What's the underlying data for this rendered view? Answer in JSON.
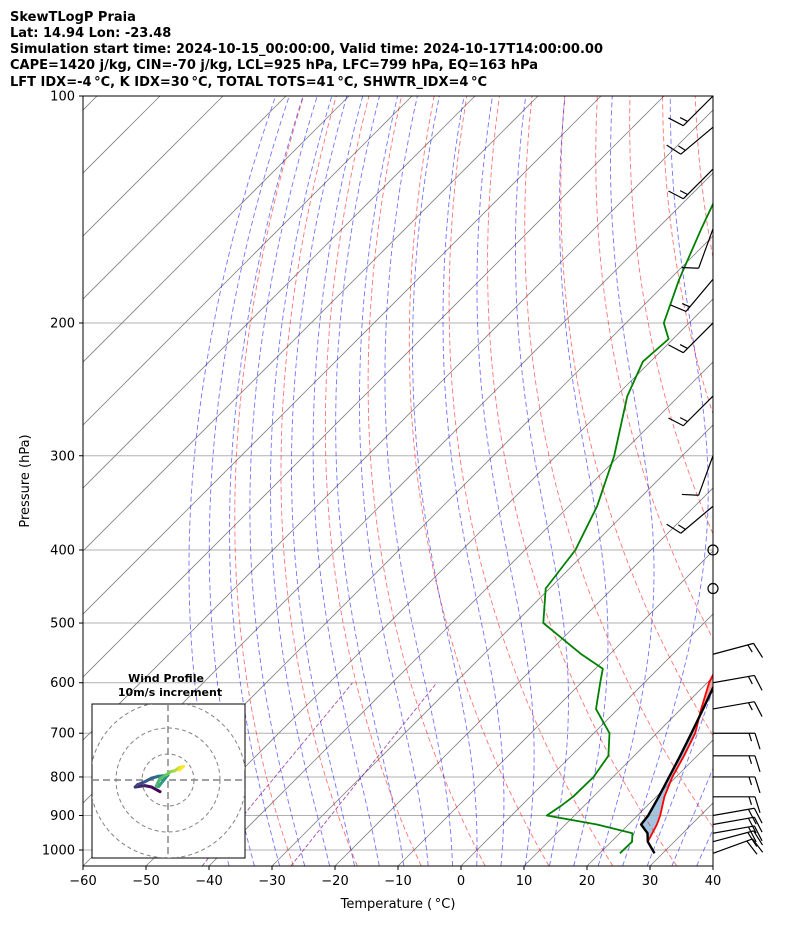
{
  "header": {
    "title": "SkewTLogP Praia",
    "location": "Lat: 14.94   Lon: -23.48",
    "times": "Simulation start time: 2024-10-15_00:00:00, Valid time: 2024-10-17T14:00:00.00",
    "indices1": "CAPE=1420 j/kg, CIN=-70 j/kg, LCL=925 hPa, LFC=799 hPa, EQ=163 hPa",
    "indices2": "LFT IDX=-4 °C, K IDX=30 °C, TOTAL TOTS=41 °C, SHWTR_IDX=4 °C"
  },
  "colors": {
    "temperature": "#ff0000",
    "dewpoint": "#008000",
    "parcel": "#000000",
    "cape_fill": "#e77c7c",
    "cin_fill": "#6a9fce",
    "dry_adiabat": "#ff0000",
    "moist_adiabat": "#0000ff",
    "mixing_ratio": "#800080",
    "isotherm": "#808080",
    "isobar": "#b0b0b0"
  },
  "chart_data": {
    "type": "line",
    "xlabel": "Temperature ( °C)",
    "ylabel": "Pressure (hPa)",
    "xlim": [
      -60,
      40
    ],
    "ylim": [
      1050,
      100
    ],
    "yscale": "log",
    "skew": true,
    "grid": true,
    "x_ticks": [
      "−60",
      "−50",
      "−40",
      "−30",
      "−20",
      "−10",
      "0",
      "10",
      "20",
      "30",
      "40"
    ],
    "y_ticks": [
      "100",
      "200",
      "300",
      "400",
      "500",
      "600",
      "700",
      "800",
      "900",
      "1000"
    ],
    "series": [
      {
        "key": "temperature",
        "points": [
          [
            1010,
            28.7
          ],
          [
            975,
            25.8
          ],
          [
            925,
            24.5
          ],
          [
            900,
            23.6
          ],
          [
            850,
            21.3
          ],
          [
            800,
            19.4
          ],
          [
            750,
            17.9
          ],
          [
            700,
            16.1
          ],
          [
            650,
            13.2
          ],
          [
            600,
            10.3
          ],
          [
            550,
            8.0
          ],
          [
            500,
            4.8
          ],
          [
            450,
            0.7
          ],
          [
            400,
            -3.8
          ],
          [
            350,
            -8.9
          ],
          [
            300,
            -14.4
          ],
          [
            250,
            -21.0
          ],
          [
            200,
            -29.5
          ],
          [
            175,
            -35.2
          ],
          [
            150,
            -41.6
          ],
          [
            125,
            -49.7
          ],
          [
            110,
            -53.6
          ],
          [
            100,
            -55.4
          ]
        ]
      },
      {
        "key": "dewpoint",
        "points": [
          [
            1010,
            23.2
          ],
          [
            975,
            23.3
          ],
          [
            950,
            22.0
          ],
          [
            925,
            15.0
          ],
          [
            900,
            5.6
          ],
          [
            875,
            6.3
          ],
          [
            850,
            6.8
          ],
          [
            800,
            6.9
          ],
          [
            750,
            5.9
          ],
          [
            700,
            2.5
          ],
          [
            650,
            -3.5
          ],
          [
            600,
            -7.0
          ],
          [
            575,
            -8.8
          ],
          [
            550,
            -14.5
          ],
          [
            500,
            -25.5
          ],
          [
            450,
            -30.6
          ],
          [
            400,
            -32.0
          ],
          [
            350,
            -35.5
          ],
          [
            300,
            -40.8
          ],
          [
            250,
            -48.2
          ],
          [
            225,
            -51.2
          ],
          [
            210,
            -50.7
          ],
          [
            200,
            -54.0
          ],
          [
            175,
            -58.5
          ],
          [
            150,
            -63.0
          ],
          [
            125,
            -68.0
          ],
          [
            110,
            -71.0
          ],
          [
            100,
            -72.5
          ]
        ]
      },
      {
        "key": "parcel",
        "points": [
          [
            1010,
            28.7
          ],
          [
            975,
            25.8
          ],
          [
            950,
            24.4
          ],
          [
            925,
            22.0
          ],
          [
            900,
            21.7
          ],
          [
            850,
            20.4
          ],
          [
            800,
            18.9
          ],
          [
            750,
            17.3
          ],
          [
            700,
            15.5
          ],
          [
            650,
            13.5
          ],
          [
            600,
            11.3
          ],
          [
            550,
            8.8
          ],
          [
            500,
            5.9
          ],
          [
            450,
            2.5
          ],
          [
            400,
            -1.6
          ],
          [
            350,
            -6.6
          ],
          [
            300,
            -12.9
          ],
          [
            250,
            -20.9
          ],
          [
            200,
            -31.4
          ],
          [
            175,
            -38.2
          ],
          [
            163,
            -41.9
          ],
          [
            150,
            -46.4
          ],
          [
            125,
            -56.8
          ],
          [
            110,
            -64.5
          ],
          [
            100,
            -70.1
          ]
        ]
      }
    ],
    "wind_barbs": [
      {
        "p": 1010,
        "speed_kt": 20,
        "dir": 70
      },
      {
        "p": 975,
        "speed_kt": 20,
        "dir": 75
      },
      {
        "p": 950,
        "speed_kt": 20,
        "dir": 80
      },
      {
        "p": 925,
        "speed_kt": 20,
        "dir": 80
      },
      {
        "p": 900,
        "speed_kt": 20,
        "dir": 80
      },
      {
        "p": 850,
        "speed_kt": 15,
        "dir": 90
      },
      {
        "p": 800,
        "speed_kt": 15,
        "dir": 90
      },
      {
        "p": 750,
        "speed_kt": 15,
        "dir": 90
      },
      {
        "p": 700,
        "speed_kt": 15,
        "dir": 90
      },
      {
        "p": 650,
        "speed_kt": 15,
        "dir": 80
      },
      {
        "p": 600,
        "speed_kt": 15,
        "dir": 80
      },
      {
        "p": 550,
        "speed_kt": 15,
        "dir": 75
      },
      {
        "p": 450,
        "speed_kt": 0,
        "dir": 0
      },
      {
        "p": 400,
        "speed_kt": 0,
        "dir": 0
      },
      {
        "p": 350,
        "speed_kt": 15,
        "dir": 230
      },
      {
        "p": 300,
        "speed_kt": 10,
        "dir": 200
      },
      {
        "p": 250,
        "speed_kt": 15,
        "dir": 225
      },
      {
        "p": 200,
        "speed_kt": 15,
        "dir": 225
      },
      {
        "p": 175,
        "speed_kt": 15,
        "dir": 220
      },
      {
        "p": 150,
        "speed_kt": 10,
        "dir": 200
      },
      {
        "p": 125,
        "speed_kt": 15,
        "dir": 225
      },
      {
        "p": 110,
        "speed_kt": 15,
        "dir": 230
      },
      {
        "p": 100,
        "speed_kt": 15,
        "dir": 225
      }
    ],
    "hodograph": {
      "title": "Wind Profile",
      "subtitle": "10m/s increment",
      "rings_ms": [
        10,
        20,
        30
      ],
      "points": [
        [
          -1.7,
          -2.5
        ],
        [
          -3.5,
          -1.5
        ],
        [
          -5.0,
          -1.2
        ],
        [
          -7.0,
          -1.5
        ],
        [
          -6.5,
          -1.0
        ],
        [
          -5.0,
          -0.4
        ],
        [
          -3.5,
          0.4
        ],
        [
          -2.0,
          0.8
        ],
        [
          -1.0,
          0.9
        ],
        [
          0.0,
          1.1
        ],
        [
          -1.2,
          -0.4
        ],
        [
          -2.0,
          -1.4
        ],
        [
          -2.5,
          -1.3
        ],
        [
          -1.8,
          0.2
        ],
        [
          -0.4,
          1.1
        ],
        [
          0.6,
          1.8
        ],
        [
          1.5,
          2.0
        ],
        [
          2.3,
          2.6
        ],
        [
          3.3,
          2.9
        ],
        [
          2.4,
          2.1
        ]
      ]
    }
  }
}
